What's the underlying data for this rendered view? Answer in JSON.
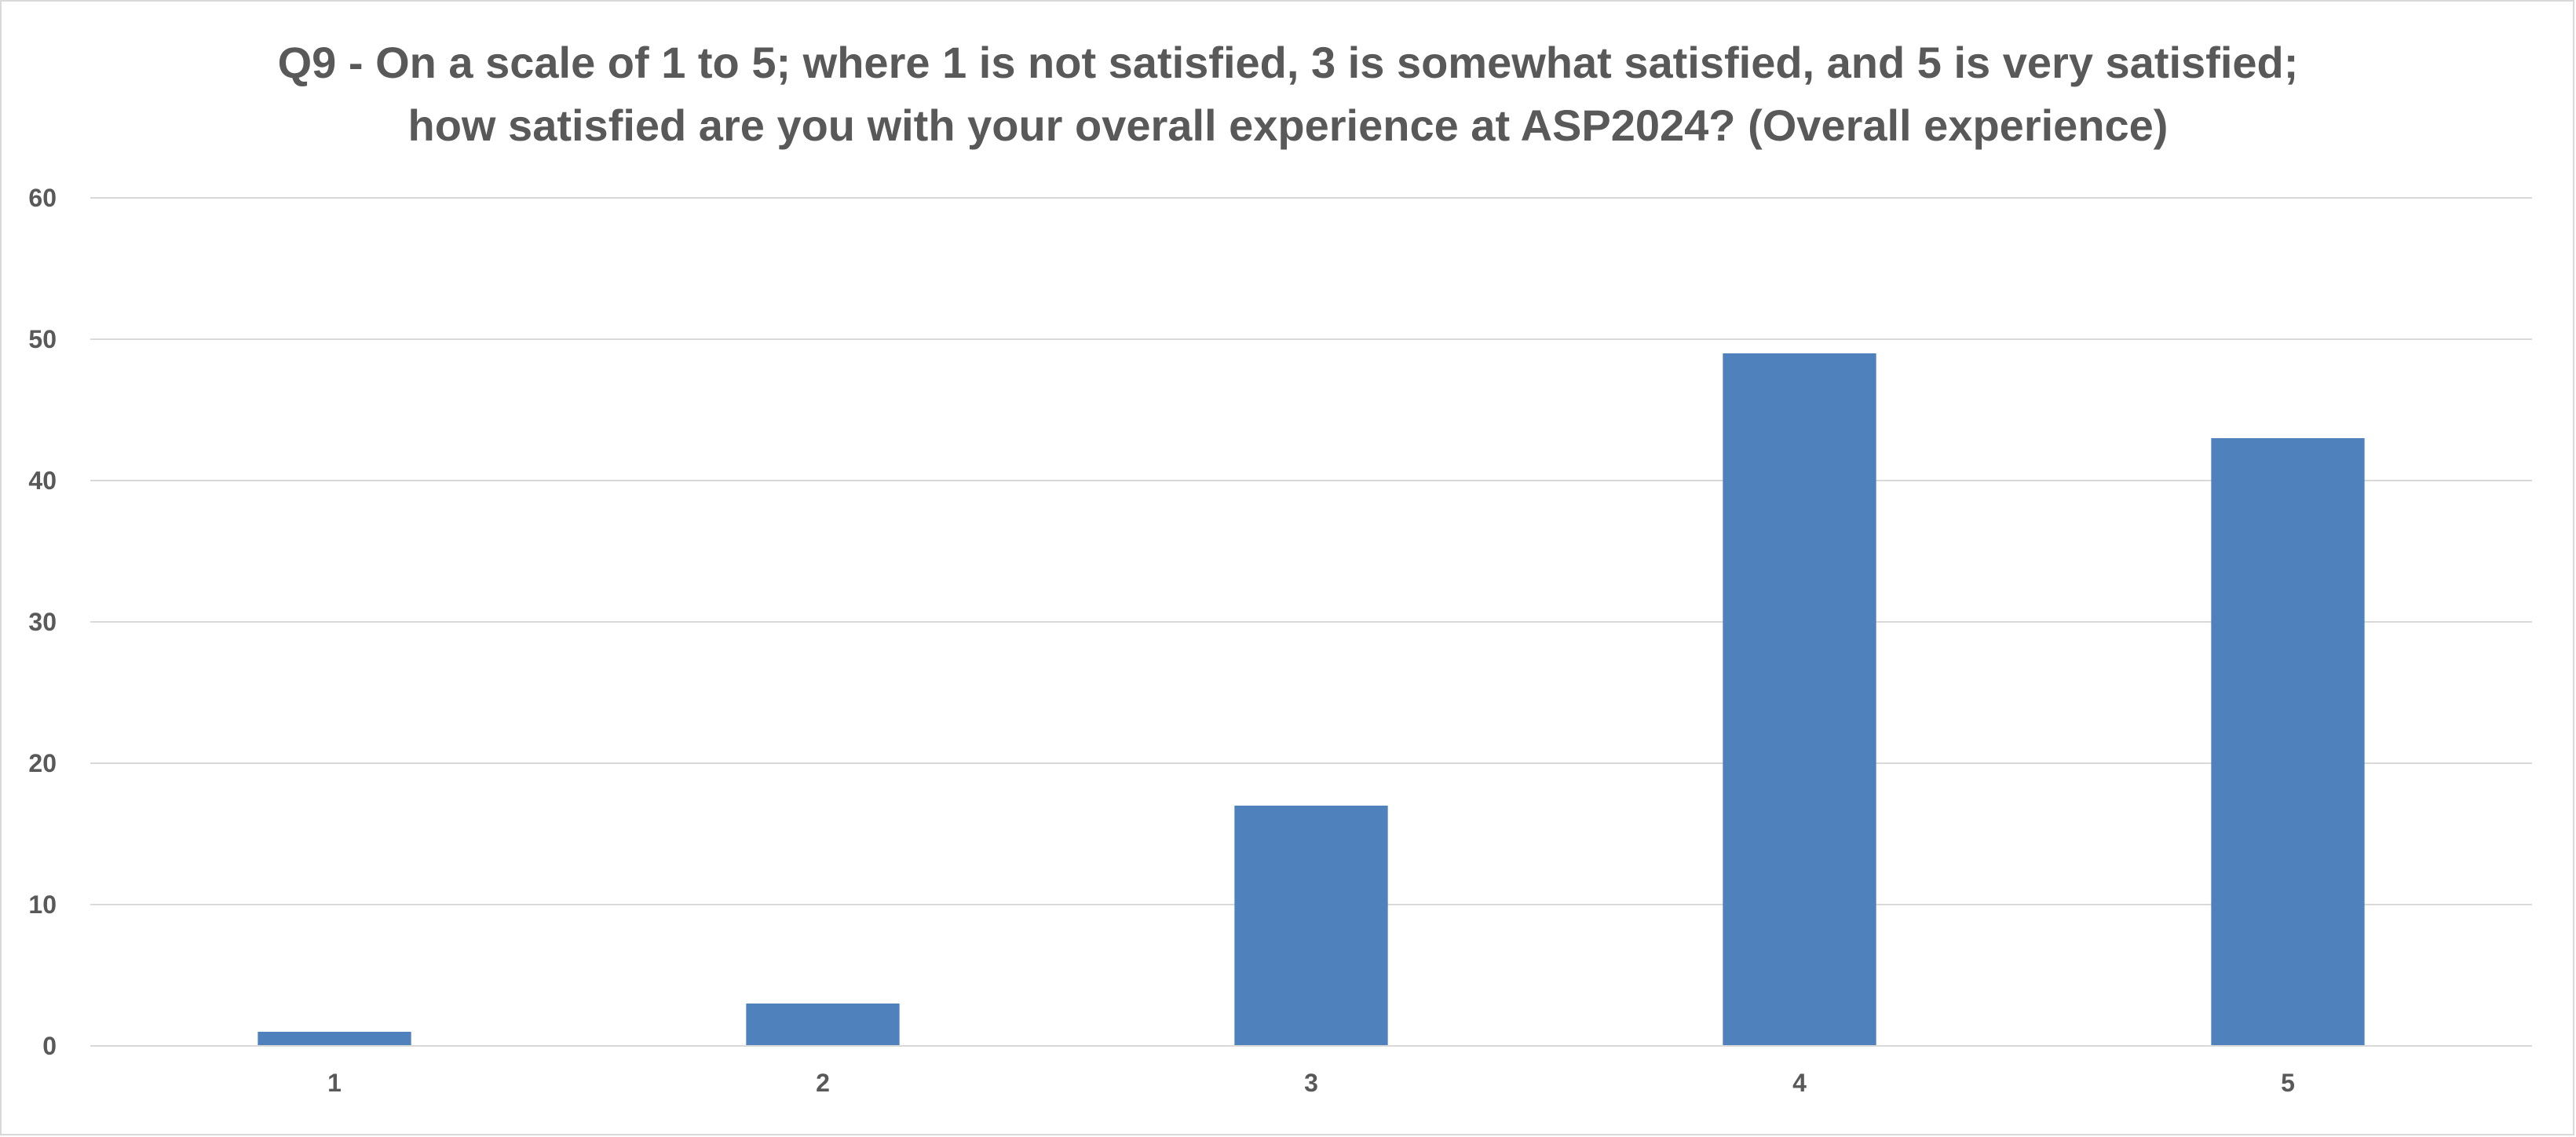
{
  "chart_data": {
    "type": "bar",
    "title_lines": [
      "Q9 - On a scale of 1 to 5; where 1 is not satisfied, 3 is somewhat satisfied, and 5 is very satisfied;",
      "how satisfied are you with your overall experience at ASP2024? (Overall experience)"
    ],
    "categories": [
      "1",
      "2",
      "3",
      "4",
      "5"
    ],
    "values": [
      1,
      3,
      17,
      49,
      43
    ],
    "ylim": [
      0,
      60
    ],
    "yticks": [
      0,
      10,
      20,
      30,
      40,
      50,
      60
    ],
    "grid": true,
    "legend": "none",
    "bar_color": "#4f81bd",
    "grid_color": "#d9d9d9",
    "text_color": "#595959"
  }
}
